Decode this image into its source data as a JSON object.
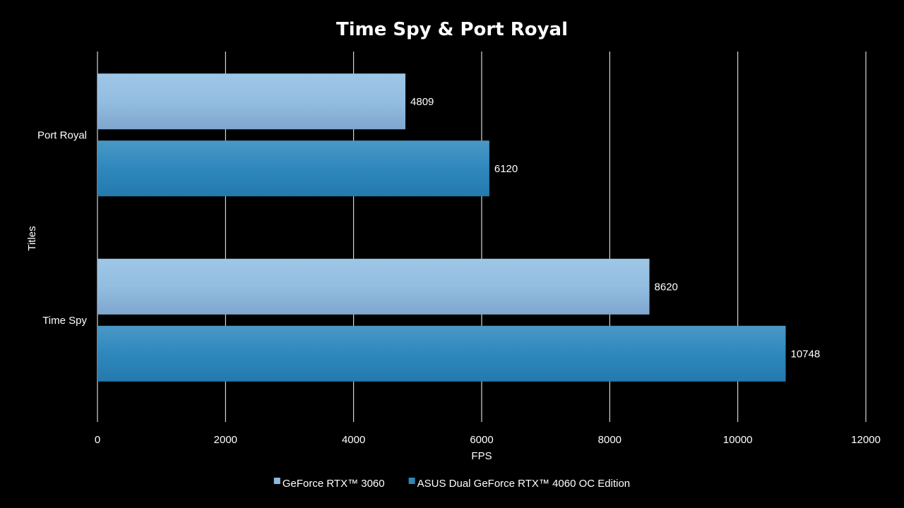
{
  "chart_data": {
    "type": "bar",
    "orientation": "horizontal",
    "title": "Time Spy & Port Royal",
    "xlabel": "FPS",
    "ylabel": "Titles",
    "categories": [
      "Port Royal",
      "Time Spy"
    ],
    "series": [
      {
        "name": "GeForce RTX™ 3060",
        "values": [
          4809,
          8620
        ],
        "color": "#8fb8dc"
      },
      {
        "name": "ASUS Dual GeForce RTX™ 4060 OC Edition",
        "values": [
          6120,
          10748
        ],
        "color": "#2e86b8"
      }
    ],
    "xlim": [
      0,
      12000
    ],
    "xticks": [
      0,
      2000,
      4000,
      6000,
      8000,
      10000,
      12000
    ],
    "grid": true,
    "legend_position": "bottom",
    "data_labels": true
  }
}
